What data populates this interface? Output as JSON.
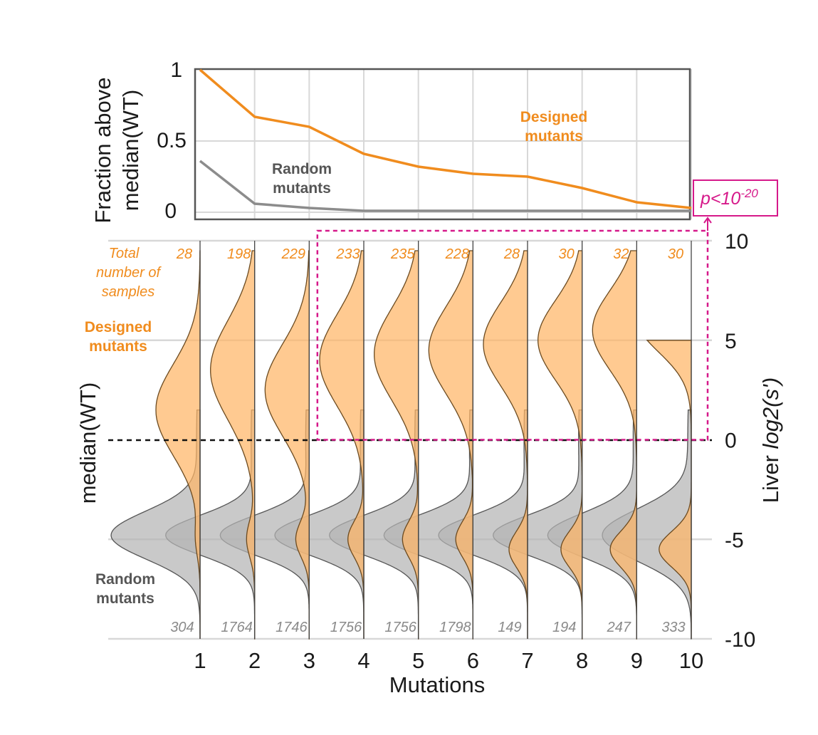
{
  "colors": {
    "designed": "#f08c1e",
    "designed_fill": "#ffb566",
    "random": "#8c8c8c",
    "random_fill": "#b4b4b4",
    "highlight": "#d6198a",
    "grid": "#d8d8d8"
  },
  "chart_data": [
    {
      "type": "line",
      "ylabel_line1": "Fraction above",
      "ylabel_line2": "median(WT)",
      "xlim": [
        1,
        10
      ],
      "ylim": [
        0,
        1
      ],
      "yticks": [
        "0",
        "0.5",
        "1"
      ],
      "grid": true,
      "x": [
        1,
        2,
        3,
        4,
        5,
        6,
        7,
        8,
        9,
        10
      ],
      "series": [
        {
          "name_line1": "Designed",
          "name_line2": "mutants",
          "color": "#f08c1e",
          "values": [
            1.0,
            0.67,
            0.6,
            0.41,
            0.32,
            0.27,
            0.25,
            0.17,
            0.07,
            0.03
          ]
        },
        {
          "name_line1": "Random",
          "name_line2": "mutants",
          "color": "#8c8c8c",
          "values": [
            0.36,
            0.06,
            0.03,
            0.01,
            0.01,
            0.01,
            0.01,
            0.01,
            0.01,
            0.01
          ]
        }
      ],
      "annotation": {
        "prefix": "p<10",
        "exponent": "-20"
      }
    },
    {
      "type": "violin",
      "xlabel": "Mutations",
      "ylabel_prefix": "Liver ",
      "ylabel_italic": "log2(s')",
      "left_label": "median(WT)",
      "ylim": [
        -10,
        10
      ],
      "yticks": [
        "-10",
        "-5",
        "0",
        "5",
        "10"
      ],
      "categories": [
        "1",
        "2",
        "3",
        "4",
        "5",
        "6",
        "7",
        "8",
        "9",
        "10"
      ],
      "reference_line_y": 0,
      "designed_label_line1": "Designed",
      "designed_label_line2": "mutants",
      "random_label_line1": "Random",
      "random_label_line2": "mutants",
      "total_label_line1": "Total",
      "total_label_line2": "number of",
      "total_label_line3": "samples",
      "designed_counts": [
        "28",
        "198",
        "229",
        "233",
        "235",
        "228",
        "28",
        "30",
        "32",
        "30"
      ],
      "random_counts": [
        "304",
        "1764",
        "1746",
        "1756",
        "1756",
        "1798",
        "149",
        "194",
        "247",
        "333"
      ],
      "designed_density": {
        "mode": [
          1.5,
          3.5,
          2.5,
          4.0,
          4.3,
          4.5,
          4.8,
          5.0,
          5.5,
          6.0
        ],
        "spread": [
          2.3,
          2.5,
          2.3,
          2.3,
          2.3,
          2.2,
          2.1,
          2.0,
          2.0,
          1.6
        ],
        "low_mode": [
          -5.0,
          -5.0,
          -5.0,
          -5.0,
          -5.0,
          -5.0,
          -5.5,
          -5.5,
          -5.5,
          -5.5
        ],
        "low_weight": [
          0.15,
          0.3,
          0.5,
          0.6,
          0.6,
          0.65,
          0.7,
          0.8,
          1.0,
          1.0
        ],
        "max": [
          9.5,
          9.5,
          9.5,
          9.5,
          9.5,
          9.5,
          9.5,
          9.5,
          9.5,
          5.0
        ]
      },
      "random_density": {
        "mode": [
          -4.8,
          -4.8,
          -4.8,
          -4.8,
          -4.8,
          -4.8,
          -4.8,
          -4.8,
          -4.8,
          -4.8
        ],
        "spread": [
          1.2,
          1.0,
          1.0,
          1.0,
          1.0,
          1.0,
          1.0,
          1.0,
          1.1,
          1.3
        ]
      },
      "highlight_box": {
        "x_from": 3.15,
        "x_to": 10.3,
        "y_from": 0,
        "y_to": 10.5
      }
    }
  ]
}
